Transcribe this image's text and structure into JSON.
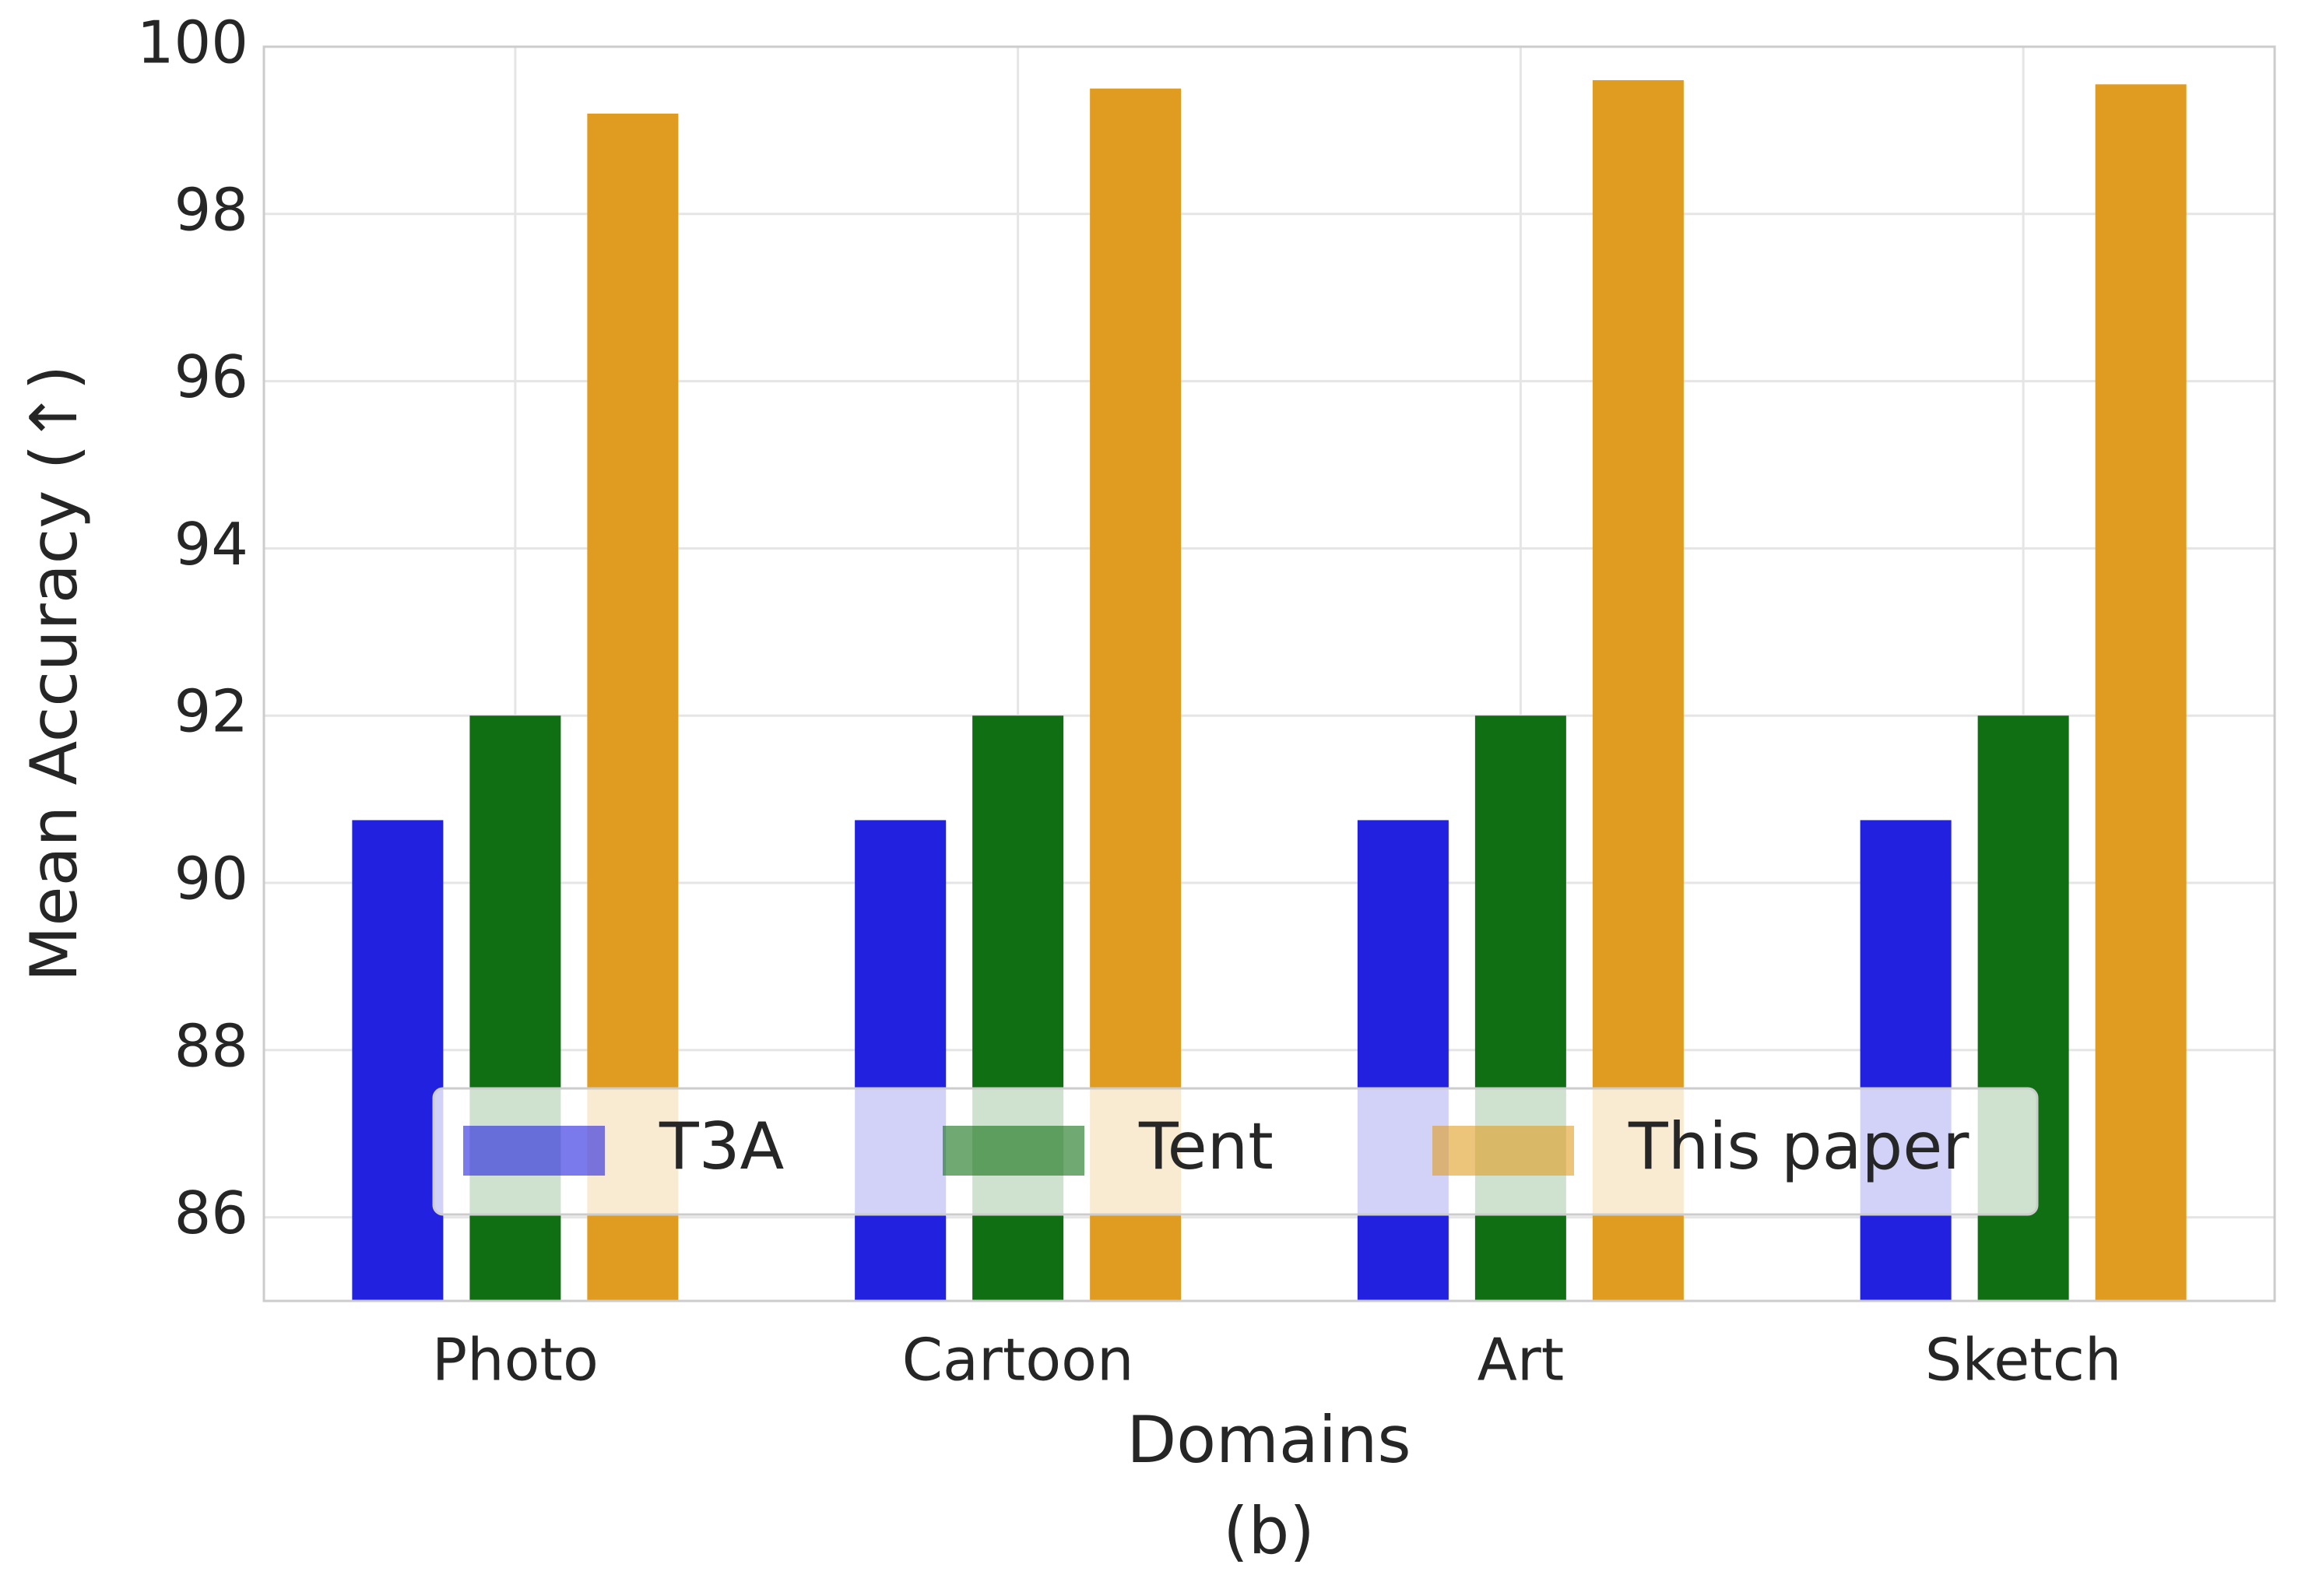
{
  "chart_data": {
    "type": "bar",
    "xlabel": "Domains",
    "ylabel": "Mean Accuracy (↑)",
    "caption": "(b)",
    "categories": [
      "Photo",
      "Cartoon",
      "Art",
      "Sketch"
    ],
    "series": [
      {
        "name": "T3A",
        "color": "#2121df",
        "values": [
          90.75,
          90.75,
          90.75,
          90.75
        ]
      },
      {
        "name": "Tent",
        "color": "#116f13",
        "values": [
          92,
          92,
          92,
          92
        ]
      },
      {
        "name": "This paper",
        "color": "#e09c21",
        "values": [
          99.2,
          99.5,
          99.6,
          99.55
        ]
      }
    ],
    "ylim": [
      85,
      100
    ],
    "yticks": [
      86,
      88,
      90,
      92,
      94,
      96,
      98,
      100
    ],
    "grid": true,
    "legend": "lower center"
  }
}
